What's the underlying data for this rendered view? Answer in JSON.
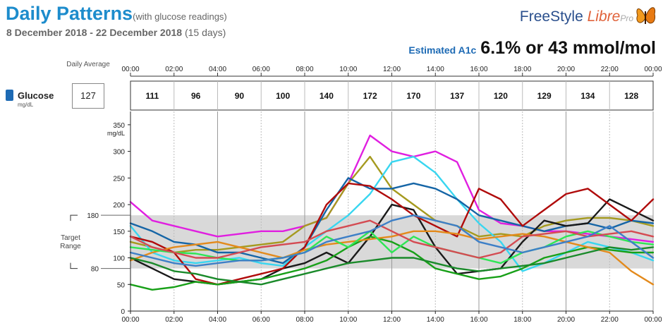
{
  "header": {
    "title": "Daily Patterns",
    "title_note": "(with glucose readings)",
    "date_range": "8 December 2018 - 22 December 2018",
    "days": "(15 days)",
    "logo_part1": "FreeStyle ",
    "logo_part2": "Libre",
    "logo_part3": "Pro",
    "a1c_label": "Estimated A1c",
    "a1c_value": "6.1% or 43 mmol/mol"
  },
  "summary": {
    "daily_average_label": "Daily Average",
    "glucose_label": "Glucose",
    "glucose_unit": "mg/dL",
    "daily_average_value": "127",
    "target_range_label": "Target Range",
    "top_time_labels": [
      "00:00",
      "02:00",
      "04:00",
      "06:00",
      "08:00",
      "10:00",
      "12:00",
      "14:00",
      "16:00",
      "18:00",
      "20:00",
      "22:00",
      "00:00"
    ],
    "two_hour_averages": [
      "111",
      "96",
      "90",
      "100",
      "140",
      "172",
      "170",
      "137",
      "120",
      "129",
      "134",
      "128"
    ]
  },
  "colors": {
    "title": "#1d8ccc",
    "target_band": "#d9d9d9",
    "a1c_label": "#1d6ab4"
  },
  "chart_data": {
    "type": "line",
    "title": "Daily Patterns",
    "ylabel": "mg/dL",
    "ylim": [
      0,
      375
    ],
    "yticks": [
      0,
      50,
      100,
      150,
      200,
      250,
      300,
      350
    ],
    "xlim": [
      0,
      24
    ],
    "x_tick_labels": [
      "00:00",
      "02:00",
      "04:00",
      "06:00",
      "08:00",
      "10:00",
      "12:00",
      "14:00",
      "16:00",
      "18:00",
      "20:00",
      "22:00",
      "00:00"
    ],
    "target_range": {
      "low": 80,
      "high": 180
    },
    "x": [
      0,
      1,
      2,
      3,
      4,
      5,
      6,
      7,
      8,
      9,
      10,
      11,
      12,
      13,
      14,
      15,
      16,
      17,
      18,
      19,
      20,
      21,
      22,
      23,
      24
    ],
    "series": [
      {
        "color": "#e01fe0",
        "values": [
          205,
          170,
          160,
          150,
          140,
          145,
          150,
          150,
          160,
          175,
          240,
          330,
          300,
          290,
          300,
          280,
          190,
          165,
          160,
          150,
          150,
          145,
          140,
          135,
          130
        ]
      },
      {
        "color": "#a59a1f",
        "values": [
          130,
          120,
          110,
          115,
          115,
          120,
          125,
          130,
          160,
          175,
          240,
          290,
          230,
          200,
          170,
          160,
          140,
          145,
          140,
          160,
          170,
          175,
          175,
          170,
          160
        ]
      },
      {
        "color": "#38d6f0",
        "values": [
          160,
          110,
          95,
          90,
          95,
          100,
          90,
          85,
          120,
          150,
          180,
          220,
          280,
          290,
          260,
          210,
          165,
          130,
          75,
          90,
          110,
          130,
          120,
          110,
          95
        ]
      },
      {
        "color": "#1565a6",
        "values": [
          165,
          150,
          130,
          125,
          110,
          110,
          100,
          90,
          120,
          190,
          250,
          230,
          230,
          240,
          230,
          210,
          180,
          170,
          160,
          150,
          160,
          165,
          155,
          170,
          165
        ]
      },
      {
        "color": "#1a1a1a",
        "values": [
          100,
          80,
          60,
          55,
          50,
          55,
          60,
          80,
          90,
          110,
          90,
          140,
          200,
          190,
          120,
          70,
          75,
          80,
          130,
          170,
          160,
          165,
          210,
          190,
          170
        ]
      },
      {
        "color": "#b00b0b",
        "values": [
          140,
          130,
          110,
          60,
          50,
          60,
          70,
          80,
          120,
          200,
          240,
          235,
          210,
          180,
          160,
          140,
          230,
          210,
          160,
          190,
          220,
          230,
          200,
          170,
          210
        ]
      },
      {
        "color": "#18a018",
        "values": [
          50,
          40,
          45,
          55,
          50,
          55,
          60,
          70,
          80,
          95,
          120,
          140,
          130,
          110,
          80,
          70,
          60,
          65,
          80,
          100,
          110,
          120,
          115,
          110,
          110
        ]
      },
      {
        "color": "#e38a1c",
        "values": [
          95,
          110,
          120,
          125,
          130,
          120,
          110,
          100,
          115,
          125,
          130,
          135,
          140,
          150,
          150,
          145,
          135,
          140,
          145,
          140,
          130,
          120,
          110,
          75,
          50
        ]
      },
      {
        "color": "#1a8a2a",
        "values": [
          100,
          90,
          75,
          70,
          60,
          55,
          50,
          60,
          70,
          80,
          90,
          95,
          100,
          100,
          90,
          80,
          75,
          80,
          85,
          90,
          100,
          110,
          120,
          115,
          120
        ]
      },
      {
        "color": "#2ee655",
        "values": [
          120,
          115,
          110,
          108,
          100,
          95,
          95,
          100,
          110,
          140,
          120,
          150,
          110,
          140,
          120,
          110,
          100,
          90,
          110,
          120,
          140,
          150,
          140,
          130,
          125
        ]
      },
      {
        "color": "#d44b52",
        "values": [
          140,
          120,
          110,
          100,
          100,
          110,
          120,
          125,
          130,
          150,
          160,
          170,
          150,
          130,
          120,
          110,
          100,
          110,
          140,
          145,
          150,
          140,
          145,
          150,
          140
        ]
      },
      {
        "color": "#3d7fc7",
        "values": [
          110,
          100,
          90,
          85,
          90,
          95,
          95,
          100,
          110,
          130,
          140,
          150,
          170,
          180,
          170,
          160,
          130,
          120,
          110,
          120,
          130,
          140,
          160,
          130,
          100
        ]
      }
    ]
  }
}
